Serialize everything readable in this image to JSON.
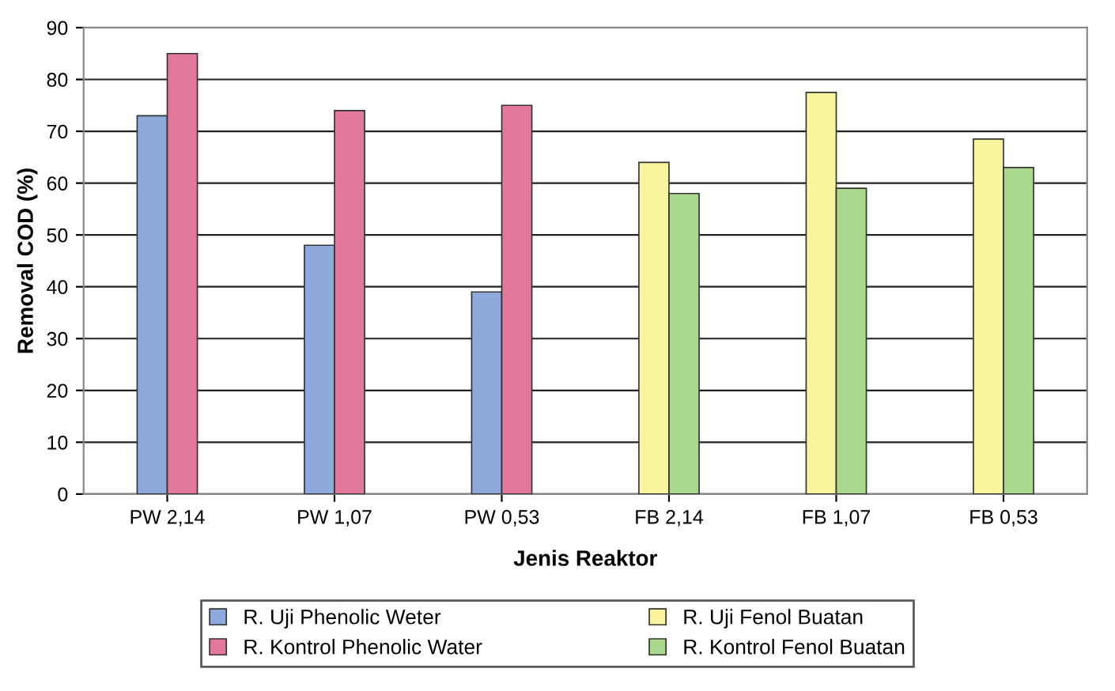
{
  "chart_data": {
    "type": "bar",
    "xlabel": "Jenis Reaktor",
    "ylabel": "Removal COD (%)",
    "categories": [
      "PW 2,14",
      "PW 1,07",
      "PW 0,53",
      "FB 2,14",
      "FB 1,07",
      "FB 0,53"
    ],
    "series": [
      {
        "name": "R. Uji Phenolic Weter",
        "color": "#8eaadc",
        "values": [
          73,
          48,
          39,
          null,
          null,
          null
        ]
      },
      {
        "name": "R. Kontrol Phenolic Water",
        "color": "#e2799d",
        "values": [
          85,
          74,
          75,
          null,
          null,
          null
        ]
      },
      {
        "name": "R. Uji Fenol Buatan",
        "color": "#f8f59e",
        "values": [
          null,
          null,
          null,
          64,
          77.5,
          68.5
        ]
      },
      {
        "name": "R. Kontrol Fenol Buatan",
        "color": "#aad88c",
        "values": [
          null,
          null,
          null,
          58,
          59,
          63
        ]
      }
    ],
    "ylim": [
      0,
      90
    ],
    "yticks": [
      0,
      10,
      20,
      30,
      40,
      50,
      60,
      70,
      80,
      90
    ],
    "grid": "y",
    "legend": "bottom"
  }
}
